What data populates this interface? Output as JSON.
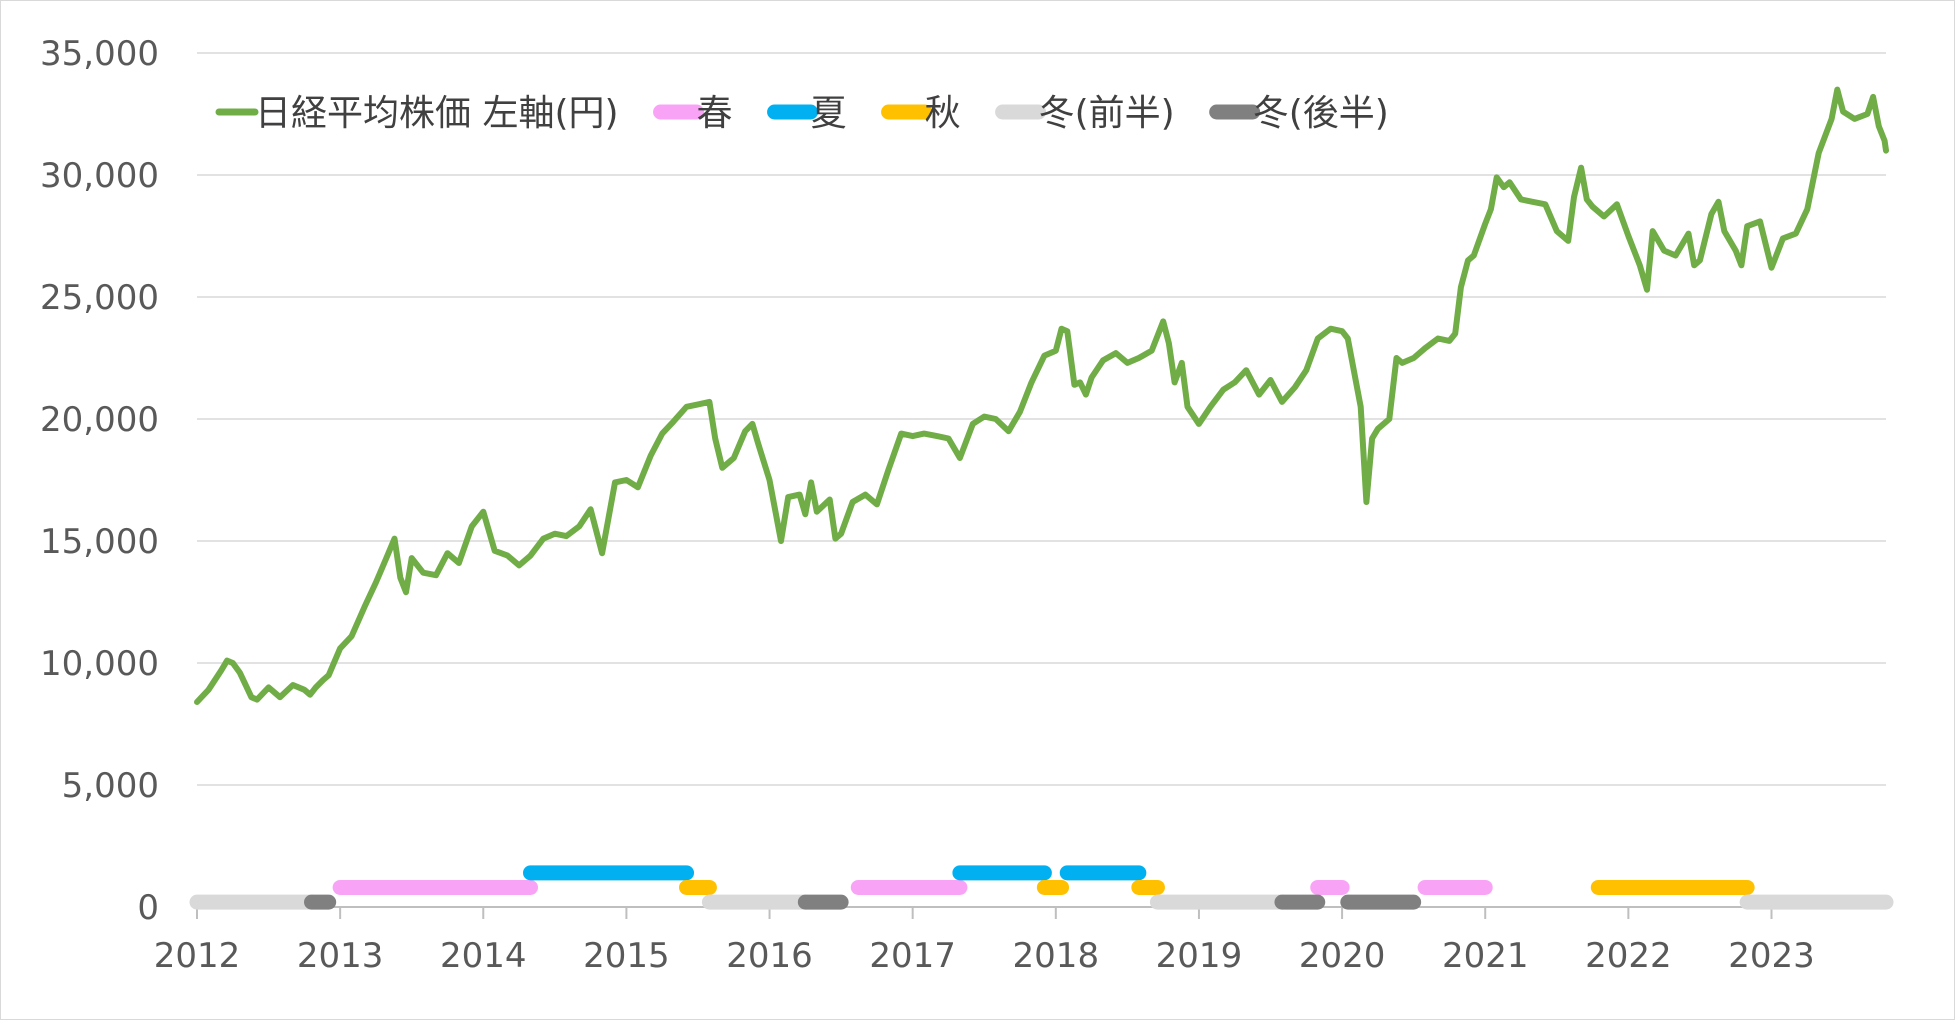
{
  "chart_data": {
    "type": "line",
    "title": "",
    "xlabel": "",
    "ylabel": "",
    "x_range": [
      2012.0,
      2023.8
    ],
    "ylim": [
      0,
      35000
    ],
    "y_ticks": [
      0,
      5000,
      10000,
      15000,
      20000,
      25000,
      30000,
      35000
    ],
    "y_tick_labels": [
      "0",
      "5,000",
      "10,000",
      "15,000",
      "20,000",
      "25,000",
      "30,000",
      "35,000"
    ],
    "x_ticks": [
      2012,
      2013,
      2014,
      2015,
      2016,
      2017,
      2018,
      2019,
      2020,
      2021,
      2022,
      2023
    ],
    "x_tick_labels": [
      "2012",
      "2013",
      "2014",
      "2015",
      "2016",
      "2017",
      "2018",
      "2019",
      "2020",
      "2021",
      "2022",
      "2023"
    ],
    "grid": "horizontal",
    "legend_position": "top-left",
    "series": [
      {
        "name": "日経平均株価 左軸(円)",
        "color": "#70ad47",
        "points": [
          [
            2012.0,
            8400
          ],
          [
            2012.08,
            8900
          ],
          [
            2012.17,
            9700
          ],
          [
            2012.21,
            10100
          ],
          [
            2012.25,
            10000
          ],
          [
            2012.3,
            9600
          ],
          [
            2012.38,
            8600
          ],
          [
            2012.42,
            8500
          ],
          [
            2012.5,
            9000
          ],
          [
            2012.58,
            8600
          ],
          [
            2012.67,
            9100
          ],
          [
            2012.75,
            8900
          ],
          [
            2012.79,
            8700
          ],
          [
            2012.83,
            9000
          ],
          [
            2012.88,
            9300
          ],
          [
            2012.92,
            9500
          ],
          [
            2013.0,
            10600
          ],
          [
            2013.08,
            11100
          ],
          [
            2013.17,
            12300
          ],
          [
            2013.25,
            13300
          ],
          [
            2013.33,
            14400
          ],
          [
            2013.38,
            15100
          ],
          [
            2013.42,
            13500
          ],
          [
            2013.46,
            12900
          ],
          [
            2013.5,
            14300
          ],
          [
            2013.58,
            13700
          ],
          [
            2013.67,
            13600
          ],
          [
            2013.75,
            14500
          ],
          [
            2013.83,
            14100
          ],
          [
            2013.92,
            15600
          ],
          [
            2014.0,
            16200
          ],
          [
            2014.08,
            14600
          ],
          [
            2014.17,
            14400
          ],
          [
            2014.25,
            14000
          ],
          [
            2014.33,
            14400
          ],
          [
            2014.42,
            15100
          ],
          [
            2014.5,
            15300
          ],
          [
            2014.58,
            15200
          ],
          [
            2014.67,
            15600
          ],
          [
            2014.75,
            16300
          ],
          [
            2014.83,
            14500
          ],
          [
            2014.92,
            17400
          ],
          [
            2015.0,
            17500
          ],
          [
            2015.08,
            17200
          ],
          [
            2015.17,
            18500
          ],
          [
            2015.25,
            19400
          ],
          [
            2015.33,
            19900
          ],
          [
            2015.42,
            20500
          ],
          [
            2015.5,
            20600
          ],
          [
            2015.58,
            20700
          ],
          [
            2015.62,
            19200
          ],
          [
            2015.67,
            18000
          ],
          [
            2015.75,
            18400
          ],
          [
            2015.83,
            19500
          ],
          [
            2015.88,
            19800
          ],
          [
            2015.92,
            19000
          ],
          [
            2016.0,
            17500
          ],
          [
            2016.08,
            15000
          ],
          [
            2016.13,
            16800
          ],
          [
            2016.21,
            16900
          ],
          [
            2016.25,
            16100
          ],
          [
            2016.29,
            17400
          ],
          [
            2016.33,
            16200
          ],
          [
            2016.42,
            16700
          ],
          [
            2016.46,
            15100
          ],
          [
            2016.5,
            15300
          ],
          [
            2016.58,
            16600
          ],
          [
            2016.67,
            16900
          ],
          [
            2016.75,
            16500
          ],
          [
            2016.83,
            17900
          ],
          [
            2016.92,
            19400
          ],
          [
            2017.0,
            19300
          ],
          [
            2017.08,
            19400
          ],
          [
            2017.17,
            19300
          ],
          [
            2017.25,
            19200
          ],
          [
            2017.33,
            18400
          ],
          [
            2017.42,
            19800
          ],
          [
            2017.5,
            20100
          ],
          [
            2017.58,
            20000
          ],
          [
            2017.67,
            19500
          ],
          [
            2017.75,
            20300
          ],
          [
            2017.83,
            21500
          ],
          [
            2017.92,
            22600
          ],
          [
            2018.0,
            22800
          ],
          [
            2018.04,
            23700
          ],
          [
            2018.08,
            23600
          ],
          [
            2018.13,
            21400
          ],
          [
            2018.17,
            21500
          ],
          [
            2018.21,
            21000
          ],
          [
            2018.25,
            21700
          ],
          [
            2018.33,
            22400
          ],
          [
            2018.42,
            22700
          ],
          [
            2018.5,
            22300
          ],
          [
            2018.58,
            22500
          ],
          [
            2018.67,
            22800
          ],
          [
            2018.75,
            24000
          ],
          [
            2018.79,
            23100
          ],
          [
            2018.83,
            21500
          ],
          [
            2018.88,
            22300
          ],
          [
            2018.92,
            20500
          ],
          [
            2019.0,
            19800
          ],
          [
            2019.08,
            20500
          ],
          [
            2019.17,
            21200
          ],
          [
            2019.25,
            21500
          ],
          [
            2019.33,
            22000
          ],
          [
            2019.42,
            21000
          ],
          [
            2019.5,
            21600
          ],
          [
            2019.58,
            20700
          ],
          [
            2019.67,
            21300
          ],
          [
            2019.75,
            22000
          ],
          [
            2019.83,
            23300
          ],
          [
            2019.92,
            23700
          ],
          [
            2020.0,
            23600
          ],
          [
            2020.04,
            23300
          ],
          [
            2020.13,
            20500
          ],
          [
            2020.17,
            16600
          ],
          [
            2020.21,
            19200
          ],
          [
            2020.25,
            19600
          ],
          [
            2020.33,
            20000
          ],
          [
            2020.38,
            22500
          ],
          [
            2020.42,
            22300
          ],
          [
            2020.5,
            22500
          ],
          [
            2020.58,
            22900
          ],
          [
            2020.67,
            23300
          ],
          [
            2020.75,
            23200
          ],
          [
            2020.79,
            23500
          ],
          [
            2020.83,
            25400
          ],
          [
            2020.88,
            26500
          ],
          [
            2020.92,
            26700
          ],
          [
            2021.0,
            28000
          ],
          [
            2021.04,
            28600
          ],
          [
            2021.08,
            29900
          ],
          [
            2021.13,
            29500
          ],
          [
            2021.17,
            29700
          ],
          [
            2021.25,
            29000
          ],
          [
            2021.33,
            28900
          ],
          [
            2021.42,
            28800
          ],
          [
            2021.5,
            27700
          ],
          [
            2021.58,
            27300
          ],
          [
            2021.62,
            29100
          ],
          [
            2021.67,
            30300
          ],
          [
            2021.71,
            29000
          ],
          [
            2021.75,
            28700
          ],
          [
            2021.83,
            28300
          ],
          [
            2021.92,
            28800
          ],
          [
            2022.0,
            27500
          ],
          [
            2022.08,
            26300
          ],
          [
            2022.13,
            25300
          ],
          [
            2022.17,
            27700
          ],
          [
            2022.25,
            26900
          ],
          [
            2022.33,
            26700
          ],
          [
            2022.42,
            27600
          ],
          [
            2022.46,
            26300
          ],
          [
            2022.5,
            26500
          ],
          [
            2022.58,
            28400
          ],
          [
            2022.63,
            28900
          ],
          [
            2022.67,
            27700
          ],
          [
            2022.75,
            26900
          ],
          [
            2022.79,
            26300
          ],
          [
            2022.83,
            27900
          ],
          [
            2022.92,
            28100
          ],
          [
            2023.0,
            26200
          ],
          [
            2023.08,
            27400
          ],
          [
            2023.17,
            27600
          ],
          [
            2023.25,
            28600
          ],
          [
            2023.33,
            30900
          ],
          [
            2023.42,
            32300
          ],
          [
            2023.46,
            33500
          ],
          [
            2023.5,
            32600
          ],
          [
            2023.58,
            32300
          ],
          [
            2023.67,
            32500
          ],
          [
            2023.71,
            33200
          ],
          [
            2023.75,
            32000
          ],
          [
            2023.79,
            31400
          ],
          [
            2023.8,
            31000
          ]
        ]
      },
      {
        "name": "春",
        "color": "#f9a3f7",
        "level": 800,
        "segments": [
          [
            2013.0,
            2014.33
          ],
          [
            2016.62,
            2017.33
          ],
          [
            2019.83,
            2020.0
          ],
          [
            2020.58,
            2021.0
          ]
        ]
      },
      {
        "name": "夏",
        "color": "#00b0f0",
        "level": 1400,
        "segments": [
          [
            2014.33,
            2015.42
          ],
          [
            2017.33,
            2017.92
          ],
          [
            2018.08,
            2018.58
          ]
        ]
      },
      {
        "name": "秋",
        "color": "#ffc000",
        "level": 800,
        "segments": [
          [
            2015.42,
            2015.58
          ],
          [
            2017.92,
            2018.04
          ],
          [
            2018.58,
            2018.71
          ],
          [
            2021.79,
            2022.83
          ]
        ]
      },
      {
        "name": "冬(前半)",
        "color": "#d9d9d9",
        "level": 200,
        "segments": [
          [
            2012.0,
            2012.8
          ],
          [
            2015.58,
            2016.25
          ],
          [
            2018.71,
            2019.58
          ],
          [
            2022.83,
            2023.8
          ]
        ]
      },
      {
        "name": "冬(後半)",
        "color": "#808080",
        "level": 200,
        "segments": [
          [
            2012.8,
            2012.92
          ],
          [
            2016.25,
            2016.5
          ],
          [
            2019.58,
            2019.83
          ],
          [
            2020.04,
            2020.5
          ]
        ]
      }
    ]
  }
}
